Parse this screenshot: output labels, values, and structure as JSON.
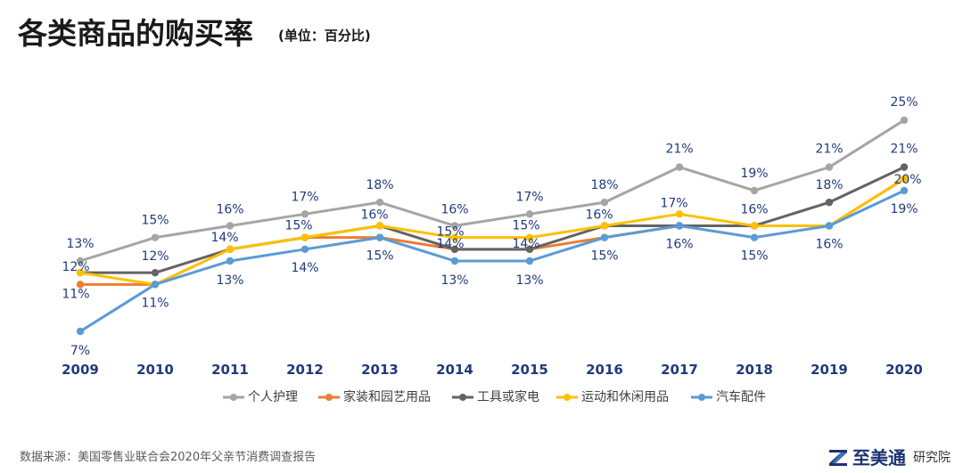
{
  "chart_data": {
    "type": "line",
    "title": "各类商品的购买率",
    "subtitle": "(单位：百分比)",
    "x": [
      "2009",
      "2010",
      "2011",
      "2012",
      "2013",
      "2014",
      "2015",
      "2016",
      "2017",
      "2018",
      "2019",
      "2020"
    ],
    "series": [
      {
        "name": "个人护理",
        "color": "#a5a5a5",
        "values": [
          13,
          15,
          16,
          17,
          18,
          16,
          17,
          18,
          21,
          19,
          21,
          25
        ]
      },
      {
        "name": "家装和园艺用品",
        "color": "#ed7d31",
        "values": [
          11,
          11,
          14,
          15,
          15,
          14,
          14,
          15,
          16,
          16,
          16,
          20
        ]
      },
      {
        "name": "工具或家电",
        "color": "#636363",
        "values": [
          12,
          12,
          14,
          15,
          16,
          14,
          14,
          16,
          16,
          16,
          18,
          21
        ]
      },
      {
        "name": "运动和休闲用品",
        "color": "#ffc000",
        "values": [
          12,
          11,
          14,
          15,
          16,
          15,
          15,
          16,
          17,
          16,
          16,
          20
        ]
      },
      {
        "name": "汽车配件",
        "color": "#5b9bd5",
        "values": [
          7,
          11,
          13,
          14,
          15,
          13,
          13,
          15,
          16,
          15,
          16,
          19
        ]
      }
    ],
    "data_labels": [
      {
        "series": 0,
        "index": 0,
        "text": "13%"
      },
      {
        "series": 2,
        "index": 0,
        "text": "12%"
      },
      {
        "series": 1,
        "index": 0,
        "text": "11%"
      },
      {
        "series": 4,
        "index": 0,
        "text": "7%"
      },
      {
        "series": 0,
        "index": 1,
        "text": "15%"
      },
      {
        "series": 2,
        "index": 1,
        "text": "12%"
      },
      {
        "series": 4,
        "index": 1,
        "text": "11%"
      },
      {
        "series": 0,
        "index": 2,
        "text": "16%"
      },
      {
        "series": 2,
        "index": 2,
        "text": "14%"
      },
      {
        "series": 4,
        "index": 2,
        "text": "13%"
      },
      {
        "series": 0,
        "index": 3,
        "text": "17%"
      },
      {
        "series": 3,
        "index": 3,
        "text": "15%"
      },
      {
        "series": 4,
        "index": 3,
        "text": "14%"
      },
      {
        "series": 0,
        "index": 4,
        "text": "18%"
      },
      {
        "series": 2,
        "index": 4,
        "text": "16%"
      },
      {
        "series": 4,
        "index": 4,
        "text": "15%"
      },
      {
        "series": 0,
        "index": 5,
        "text": "16%"
      },
      {
        "series": 3,
        "index": 5,
        "text": "15%"
      },
      {
        "series": 2,
        "index": 5,
        "text": "14%"
      },
      {
        "series": 4,
        "index": 5,
        "text": "13%"
      },
      {
        "series": 0,
        "index": 6,
        "text": "17%"
      },
      {
        "series": 3,
        "index": 6,
        "text": "15%"
      },
      {
        "series": 2,
        "index": 6,
        "text": "14%"
      },
      {
        "series": 4,
        "index": 6,
        "text": "13%"
      },
      {
        "series": 0,
        "index": 7,
        "text": "18%"
      },
      {
        "series": 2,
        "index": 7,
        "text": "16%"
      },
      {
        "series": 4,
        "index": 7,
        "text": "15%"
      },
      {
        "series": 0,
        "index": 8,
        "text": "21%"
      },
      {
        "series": 3,
        "index": 8,
        "text": "17%"
      },
      {
        "series": 4,
        "index": 8,
        "text": "16%"
      },
      {
        "series": 0,
        "index": 9,
        "text": "19%"
      },
      {
        "series": 2,
        "index": 9,
        "text": "16%"
      },
      {
        "series": 4,
        "index": 9,
        "text": "15%"
      },
      {
        "series": 0,
        "index": 10,
        "text": "21%"
      },
      {
        "series": 2,
        "index": 10,
        "text": "18%"
      },
      {
        "series": 4,
        "index": 10,
        "text": "16%"
      },
      {
        "series": 0,
        "index": 11,
        "text": "25%"
      },
      {
        "series": 2,
        "index": 11,
        "text": "21%"
      },
      {
        "series": 3,
        "index": 11,
        "text": "20%"
      },
      {
        "series": 4,
        "index": 11,
        "text": "19%"
      }
    ],
    "label_color": "#203a7c",
    "legend_position": "bottom",
    "grid": false,
    "y_axis_visible": false
  },
  "footer": {
    "source": "数据来源：美国零售业联合会2020年父亲节消费调查报告"
  },
  "brand": {
    "icon": "zmt-logo-icon",
    "name": "至美通",
    "suffix": "研究院",
    "color": "#1c3373"
  }
}
